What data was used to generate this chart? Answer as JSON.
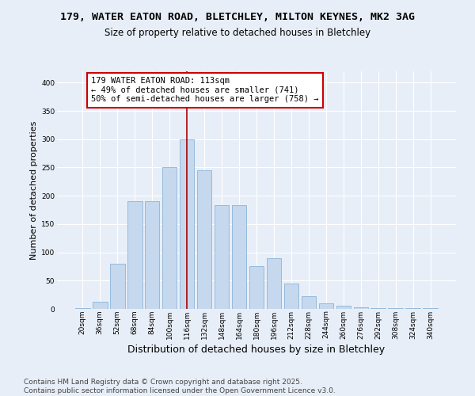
{
  "title_line1": "179, WATER EATON ROAD, BLETCHLEY, MILTON KEYNES, MK2 3AG",
  "title_line2": "Size of property relative to detached houses in Bletchley",
  "xlabel": "Distribution of detached houses by size in Bletchley",
  "ylabel": "Number of detached properties",
  "categories": [
    "20sqm",
    "36sqm",
    "52sqm",
    "68sqm",
    "84sqm",
    "100sqm",
    "116sqm",
    "132sqm",
    "148sqm",
    "164sqm",
    "180sqm",
    "196sqm",
    "212sqm",
    "228sqm",
    "244sqm",
    "260sqm",
    "276sqm",
    "292sqm",
    "308sqm",
    "324sqm",
    "340sqm"
  ],
  "values": [
    2,
    12,
    80,
    190,
    190,
    250,
    300,
    245,
    183,
    183,
    75,
    90,
    45,
    22,
    10,
    5,
    3,
    2,
    2,
    1,
    1
  ],
  "bar_color": "#c5d8ee",
  "bar_edgecolor": "#8bb4d8",
  "vline_x_index": 6,
  "vline_color": "#aa0000",
  "annotation_text": "179 WATER EATON ROAD: 113sqm\n← 49% of detached houses are smaller (741)\n50% of semi-detached houses are larger (758) →",
  "annotation_box_facecolor": "#ffffff",
  "annotation_box_edgecolor": "#cc0000",
  "ylim": [
    0,
    420
  ],
  "yticks": [
    0,
    50,
    100,
    150,
    200,
    250,
    300,
    350,
    400
  ],
  "background_color": "#e8eef8",
  "plot_bg_color": "#e8eef8",
  "footer_line1": "Contains HM Land Registry data © Crown copyright and database right 2025.",
  "footer_line2": "Contains public sector information licensed under the Open Government Licence v3.0.",
  "title_fontsize": 9.5,
  "subtitle_fontsize": 8.5,
  "ylabel_fontsize": 8,
  "xlabel_fontsize": 9,
  "tick_fontsize": 6.5,
  "annotation_fontsize": 7.5,
  "footer_fontsize": 6.5
}
